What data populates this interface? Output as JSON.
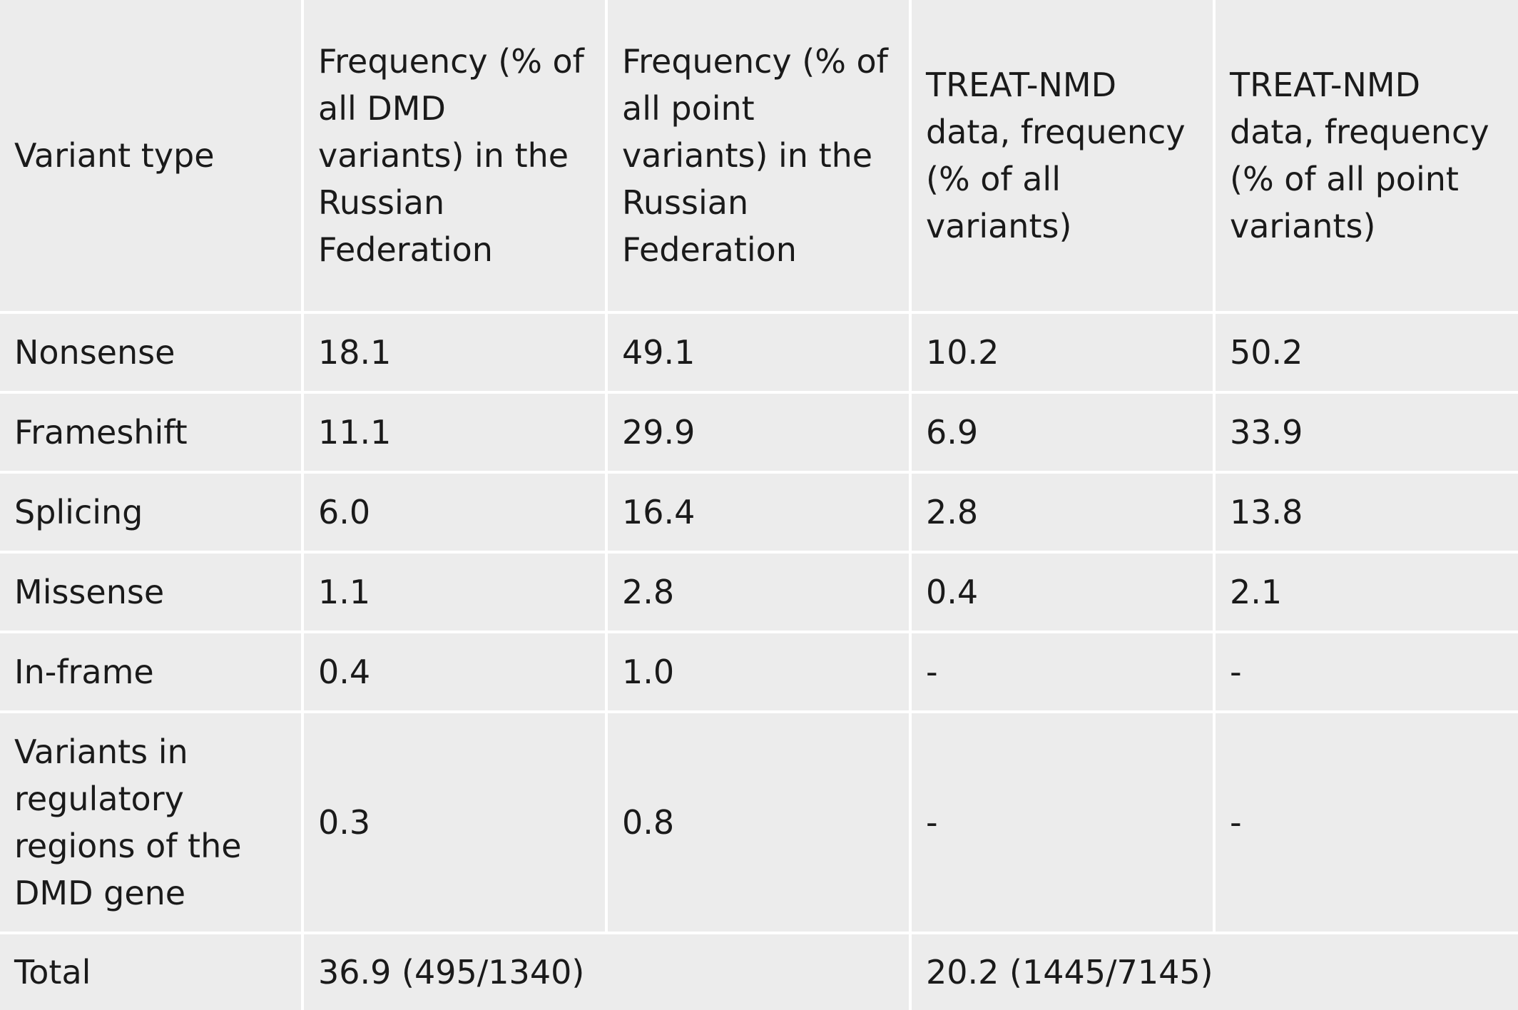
{
  "table": {
    "headers": [
      "Variant type",
      "Frequency (% of all DMD variants) in the Russian Federation",
      "Frequency (% of all point variants) in the Russian Federation",
      "TREAT-NMD data, frequency (% of all variants)",
      "TREAT-NMD data, frequency (% of all point variants)"
    ],
    "rows": [
      {
        "type": "Nonsense",
        "ru_all": "18.1",
        "ru_point": "49.1",
        "tn_all": "10.2",
        "tn_point": "50.2"
      },
      {
        "type": "Frameshift",
        "ru_all": "11.1",
        "ru_point": "29.9",
        "tn_all": "6.9",
        "tn_point": "33.9"
      },
      {
        "type": "Splicing",
        "ru_all": "6.0",
        "ru_point": "16.4",
        "tn_all": "2.8",
        "tn_point": "13.8"
      },
      {
        "type": "Missense",
        "ru_all": "1.1",
        "ru_point": "2.8",
        "tn_all": "0.4",
        "tn_point": "2.1"
      },
      {
        "type": "In-frame",
        "ru_all": "0.4",
        "ru_point": "1.0",
        "tn_all": "-",
        "tn_point": "-"
      },
      {
        "type": "Variants in regulatory regions of the DMD gene",
        "ru_all": "0.3",
        "ru_point": "0.8",
        "tn_all": "-",
        "tn_point": "-"
      }
    ],
    "total": {
      "label": "Total",
      "ru": "36.9 (495/1340)",
      "tn": "20.2 (1445/7145)"
    }
  },
  "colors": {
    "cell_background": "#ececec",
    "grid_lines": "#ffffff",
    "text": "#1a1a1a"
  }
}
